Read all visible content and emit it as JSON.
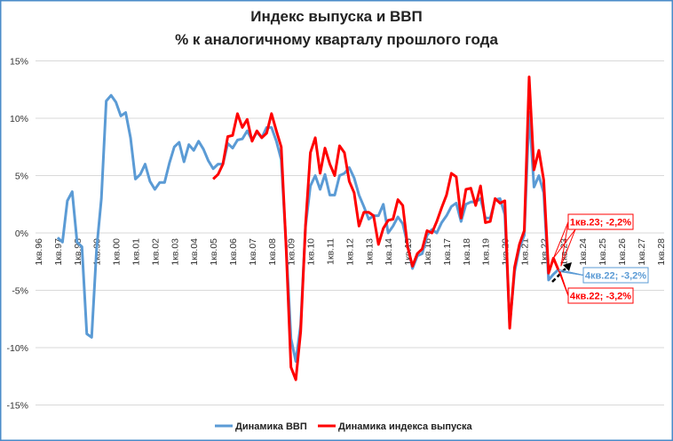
{
  "chart_data": {
    "type": "line",
    "title": [
      "Индекс выпуска и ВВП",
      "% к аналогичному кварталу прошлого года"
    ],
    "xlabel": "",
    "ylabel": "",
    "frequency": "quarterly",
    "x_tick_labels": [
      "1кв.96",
      "1кв.97",
      "1кв.98",
      "1кв.99",
      "1кв.00",
      "1кв.01",
      "1кв.02",
      "1кв.03",
      "1кв.04",
      "1кв.05",
      "1кв.06",
      "1кв.07",
      "1кв.08",
      "1кв.09",
      "1кв.10",
      "1кв.11",
      "1кв.12",
      "1кв.13",
      "1кв.14",
      "1кв.15",
      "1кв.16",
      "1кв.17",
      "1кв.18",
      "1кв.19",
      "1кв.20",
      "1кв.21",
      "1кв.22",
      "1кв.23",
      "1кв.24",
      "1кв.25",
      "1кв.26",
      "1кв.27",
      "1кв.28"
    ],
    "y_tick_labels": [
      "15%",
      "10%",
      "5%",
      "0%",
      "-5%",
      "-10%",
      "-15%"
    ],
    "y_ticks": [
      15,
      10,
      5,
      0,
      -5,
      -10,
      -15
    ],
    "ylim": [
      -15,
      15
    ],
    "grid": "horizontal",
    "legend_position": "bottom",
    "series": [
      {
        "name": "Динамика ВВП",
        "color": "#5B9BD5",
        "start_quarter": "1кв.97",
        "values": [
          -0.4,
          -0.8,
          2.8,
          3.6,
          -0.8,
          -1.2,
          -8.8,
          -9.1,
          -1.5,
          3.0,
          11.5,
          12.0,
          11.4,
          10.2,
          10.5,
          8.3,
          4.7,
          5.1,
          6.0,
          4.5,
          3.8,
          4.4,
          4.4,
          6.1,
          7.5,
          7.9,
          6.2,
          7.7,
          7.2,
          8.0,
          7.3,
          6.3,
          5.6,
          6.0,
          6.0,
          7.8,
          7.4,
          8.1,
          8.2,
          8.9,
          8.1,
          8.8,
          8.3,
          9.2,
          9.2,
          8.0,
          6.4,
          -1.0,
          -9.2,
          -11.2,
          -8.0,
          0.6,
          4.1,
          5.0,
          3.8,
          5.1,
          3.3,
          3.3,
          5.0,
          5.2,
          5.7,
          4.8,
          3.3,
          2.3,
          1.2,
          1.5,
          1.5,
          2.5,
          0.0,
          0.6,
          1.4,
          0.8,
          -1.0,
          -3.1,
          -2.0,
          -1.8,
          -0.2,
          0.3,
          0.0,
          0.9,
          1.5,
          2.3,
          2.6,
          1.0,
          2.5,
          2.7,
          2.7,
          3.0,
          1.3,
          1.3,
          2.9,
          3.0,
          1.6,
          -8.0,
          -3.4,
          -1.3,
          -0.2,
          10.5,
          4.0,
          5.0,
          3.5,
          -4.1,
          -3.6,
          -3.2
        ]
      },
      {
        "name": "Динамика индекса выпуска",
        "color": "#FF0000",
        "start_quarter": "1кв.05",
        "values": [
          4.7,
          5.1,
          6.0,
          8.4,
          8.5,
          10.4,
          9.2,
          9.9,
          8.0,
          8.9,
          8.3,
          8.7,
          10.4,
          8.9,
          7.5,
          -1.2,
          -11.7,
          -12.8,
          -8.6,
          0.7,
          7.0,
          8.3,
          5.2,
          7.4,
          6.0,
          5.0,
          7.6,
          7.0,
          4.5,
          3.5,
          0.6,
          1.8,
          1.8,
          1.5,
          -1.0,
          0.4,
          1.1,
          1.2,
          2.9,
          2.4,
          -1.2,
          -2.9,
          -1.8,
          -1.4,
          0.2,
          0.0,
          1.0,
          2.2,
          3.3,
          5.2,
          4.9,
          1.3,
          3.8,
          3.9,
          2.4,
          4.1,
          0.9,
          1.0,
          3.0,
          2.6,
          2.8,
          -8.3,
          -3.0,
          -1.0,
          0.2,
          13.6,
          5.5,
          7.2,
          4.6,
          -3.5,
          -2.2,
          -3.2
        ]
      }
    ],
    "annotations": [
      {
        "text": "1кв.23; -2,2%",
        "series": "Динамика индекса выпуска",
        "color": "#FF0000"
      },
      {
        "text": "4кв.22; -3,2%",
        "series": "Динамика ВВП",
        "color": "#5B9BD5"
      },
      {
        "text": "4кв.22; -3,2%",
        "series": "Динамика индекса выпуска",
        "color": "#FF0000"
      }
    ],
    "trend_arrow": {
      "style": "dashed",
      "color": "#000000"
    }
  }
}
